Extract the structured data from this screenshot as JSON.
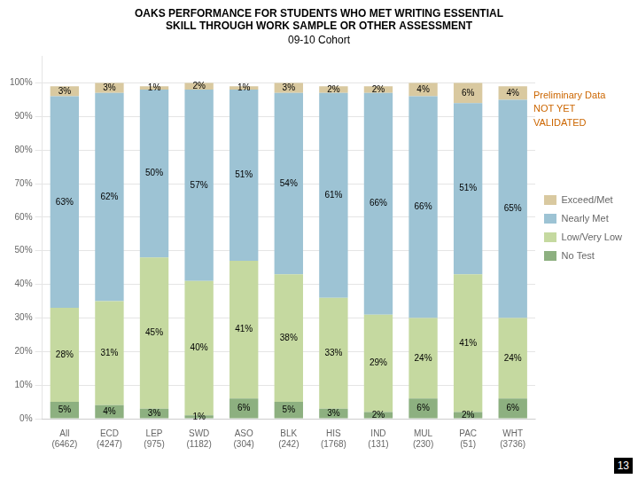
{
  "chart_data": {
    "type": "bar",
    "title": "OAKS PERFORMANCE FOR STUDENTS WHO MET WRITING ESSENTIAL\nSKILL THROUGH WORK SAMPLE OR OTHER ASSESSMENT",
    "subtitle": "09-10 Cohort",
    "categories": [
      "All\n(6462)",
      "ECD\n(4247)",
      "LEP\n(975)",
      "SWD\n(1182)",
      "ASO\n(304)",
      "BLK\n(242)",
      "HIS\n(1768)",
      "IND\n(131)",
      "MUL\n(230)",
      "PAC\n(51)",
      "WHT\n(3736)"
    ],
    "series": [
      {
        "name": "No Test",
        "color": "#8db080",
        "values": [
          5,
          4,
          3,
          1,
          6,
          5,
          3,
          2,
          6,
          2,
          6
        ],
        "value_labels": [
          "5%",
          "4%",
          "3%",
          "1%",
          "6%",
          "5%",
          "3%",
          "2%",
          "6%",
          "2%",
          "6%"
        ]
      },
      {
        "name": "Low/Very Low",
        "color": "#c5d9a0",
        "values": [
          28,
          31,
          45,
          40,
          41,
          38,
          33,
          29,
          24,
          41,
          24
        ],
        "value_labels": [
          "28%",
          "31%",
          "45%",
          "40%",
          "41%",
          "38%",
          "33%",
          "29%",
          "24%",
          "41%",
          "24%"
        ]
      },
      {
        "name": "Nearly Met",
        "color": "#9dc3d4",
        "values": [
          63,
          62,
          50,
          57,
          51,
          54,
          61,
          66,
          66,
          51,
          65
        ],
        "value_labels": [
          "63%",
          "62%",
          "50%",
          "57%",
          "51%",
          "54%",
          "61%",
          "66%",
          "66%",
          "51%",
          "65%"
        ]
      },
      {
        "name": "Exceed/Met",
        "color": "#d9c9a0",
        "values": [
          3,
          3,
          1,
          2,
          1,
          3,
          2,
          2,
          4,
          6,
          4
        ],
        "value_labels": [
          "3%",
          "3%",
          "1%",
          "2%",
          "1%",
          "3%",
          "2%",
          "2%",
          "4%",
          "6%",
          "4%"
        ]
      }
    ],
    "stacked": true,
    "data_labels": true,
    "ylim": [
      0,
      108
    ],
    "yticks": [
      {
        "value": 0,
        "label": "0%"
      },
      {
        "value": 10,
        "label": "10%"
      },
      {
        "value": 20,
        "label": "20%"
      },
      {
        "value": 30,
        "label": "30%"
      },
      {
        "value": 40,
        "label": "40%"
      },
      {
        "value": 50,
        "label": "50%"
      },
      {
        "value": 60,
        "label": "60%"
      },
      {
        "value": 70,
        "label": "70%"
      },
      {
        "value": 80,
        "label": "80%"
      },
      {
        "value": 90,
        "label": "90%"
      },
      {
        "value": 100,
        "label": "100%"
      }
    ],
    "grid": true,
    "legend": "right",
    "annotations": [
      {
        "text": "Preliminary Data\nNOT YET\nVALIDATED",
        "color": "#cc6600"
      },
      {
        "text": "13"
      }
    ]
  }
}
